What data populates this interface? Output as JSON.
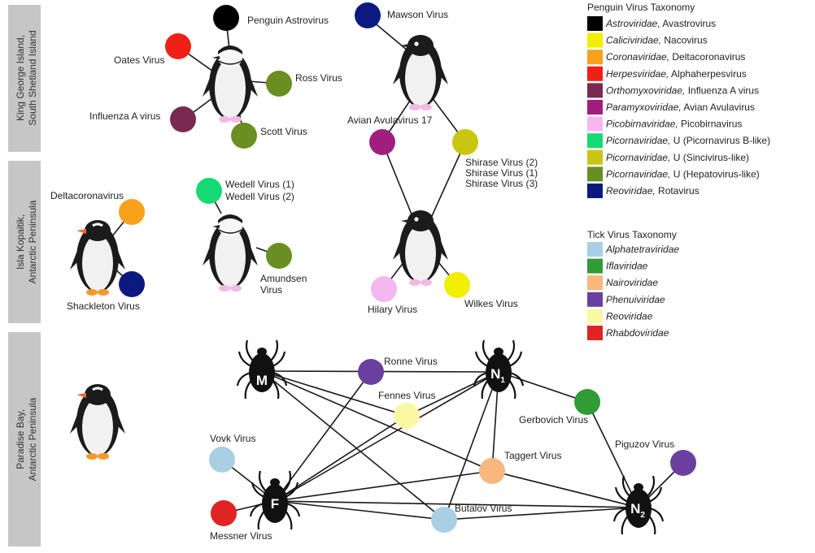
{
  "regions": [
    {
      "line1": "King George Island,",
      "line2": "South Shetland Island"
    },
    {
      "line1": "Isla Kopaitik,",
      "line2": "Antarctic Peninsula"
    },
    {
      "line1": "Paradise Bay,",
      "line2": "Antarctic Peninsula"
    }
  ],
  "colors": {
    "astroviridae": "#000000",
    "caliciviridae": "#f2ee00",
    "coronaviridae": "#f7a21b",
    "herpesviridae": "#ef2015",
    "orthomyxoviridae": "#7a2a52",
    "paramyxoviridae": "#a01e7e",
    "picobirnaviridae": "#f5b8ee",
    "picorna_b": "#15d972",
    "picorna_sinci": "#c9c612",
    "picorna_hepato": "#6b8e23",
    "reoviridae": "#0b1a80",
    "alphatetraviridae": "#a8cfe3",
    "iflaviridae": "#2f9c35",
    "nairoviridae": "#f8b77d",
    "phenuiviridae": "#6b3fa0",
    "tick_reoviridae": "#fbf8a3",
    "rhabdoviridae": "#e02424"
  },
  "nodes": {
    "penguin_astrovirus": "Penguin Astrovirus",
    "oates": "Oates Virus",
    "ross": "Ross Virus",
    "influenza": "Influenza A virus",
    "scott": "Scott Virus",
    "mawson": "Mawson Virus",
    "avian_avula": "Avian Avulavirus 17",
    "shirase_1": "Shirase Virus (2)",
    "shirase_2": "Shirase Virus (1)",
    "shirase_3": "Shirase Virus (3)",
    "deltacorona": "Deltacoronavirus",
    "shackleton": "Shackleton Virus",
    "wedell_1": "Wedell Virus (1)",
    "wedell_2": "Wedell Virus (2)",
    "amundsen_1": "Amundsen",
    "amundsen_2": "Virus",
    "hilary": "Hilary Virus",
    "wilkes": "Wilkes Virus",
    "ronne": "Ronne Virus",
    "fennes": "Fennes Virus",
    "gerbovich": "Gerbovich Virus",
    "taggert": "Taggert Virus",
    "piguzov": "Piguzov Virus",
    "vovk": "Vovk Virus",
    "messner": "Messner Virus",
    "butalov": "Butalov Virus"
  },
  "ticks": {
    "m": "M",
    "n1": "N",
    "n1_sub": "1",
    "f": "F",
    "n2": "N",
    "n2_sub": "2"
  },
  "penguin_legend": {
    "title": "Penguin Virus Taxonomy",
    "items": [
      {
        "family": "Astroviridae,",
        "rest": " Avastrovirus",
        "color": "#000000"
      },
      {
        "family": "Caliciviridae,",
        "rest": " Nacovirus",
        "color": "#f2ee00"
      },
      {
        "family": "Coronaviridae,",
        "rest": " Deltacoronavirus",
        "color": "#f7a21b"
      },
      {
        "family": "Herpesviridae,",
        "rest": " Alphaherpesvirus",
        "color": "#ef2015"
      },
      {
        "family": "Orthomyxoviridae,",
        "rest": " Influenza A virus",
        "color": "#7a2a52"
      },
      {
        "family": "Paramyxoviridae,",
        "rest": " Avian Avulavirus",
        "color": "#a01e7e"
      },
      {
        "family": "Picobirnaviridae,",
        "rest": " Picobirnavirus",
        "color": "#f5b8ee"
      },
      {
        "family": "Picornaviridae,",
        "rest": " U (Picornavirus B-like)",
        "color": "#15d972"
      },
      {
        "family": "Picornaviridae,",
        "rest": " U (Sincivirus-like)",
        "color": "#c9c612"
      },
      {
        "family": "Picornaviridae,",
        "rest": " U (Hepatovirus-like)",
        "color": "#6b8e23"
      },
      {
        "family": "Reoviridae,",
        "rest": " Rotavirus",
        "color": "#0b1a80"
      }
    ]
  },
  "tick_legend": {
    "title": "Tick Virus Taxonomy",
    "items": [
      {
        "family": "Alphatetraviridae",
        "color": "#a8cfe3"
      },
      {
        "family": "Iflaviridae",
        "color": "#2f9c35"
      },
      {
        "family": "Nairoviridae",
        "color": "#f8b77d"
      },
      {
        "family": "Phenuiviridae",
        "color": "#6b3fa0"
      },
      {
        "family": "Reoviridae",
        "color": "#fbf8a3"
      },
      {
        "family": "Rhabdoviridae",
        "color": "#e02424"
      }
    ]
  }
}
